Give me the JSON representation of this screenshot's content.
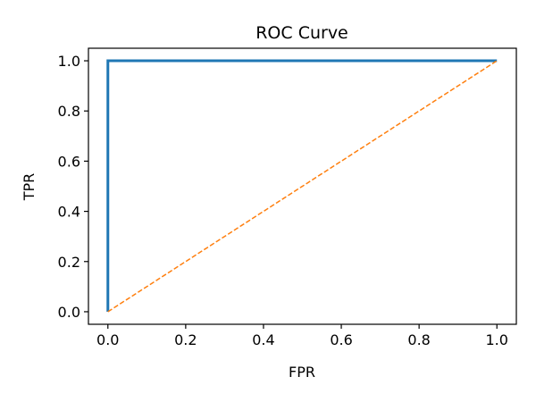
{
  "chart_data": {
    "type": "line",
    "title": "ROC Curve",
    "xlabel": "FPR",
    "ylabel": "TPR",
    "xlim": [
      -0.05,
      1.05
    ],
    "ylim": [
      -0.05,
      1.05
    ],
    "xticks": [
      "0.0",
      "0.2",
      "0.4",
      "0.6",
      "0.8",
      "1.0"
    ],
    "yticks": [
      "0.0",
      "0.2",
      "0.4",
      "0.6",
      "0.8",
      "1.0"
    ],
    "grid": false,
    "series": [
      {
        "style": "solid",
        "color": "#1f77b4",
        "x": [
          0.0,
          0.0,
          1.0
        ],
        "y": [
          0.0,
          1.0,
          1.0
        ]
      },
      {
        "style": "dashed",
        "color": "#ff7f0e",
        "x": [
          0.0,
          1.0
        ],
        "y": [
          0.0,
          1.0
        ]
      }
    ]
  }
}
